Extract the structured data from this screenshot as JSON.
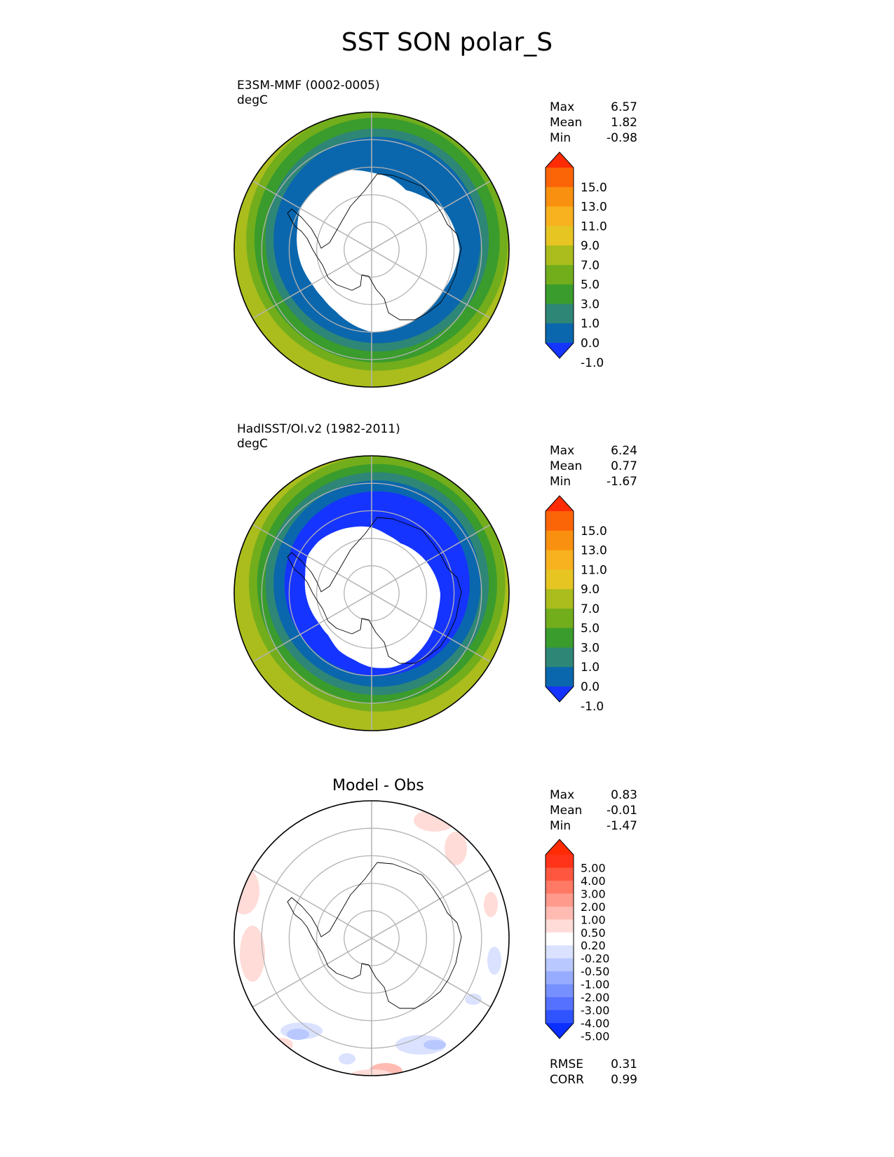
{
  "figure": {
    "title": "SST SON polar_S"
  },
  "chart_data": [
    {
      "type": "heatmap",
      "projection": "south polar stereographic",
      "title": "E3SM-MMF (0002-0005)",
      "units": "degC",
      "stats": [
        {
          "label": "Max",
          "value": "6.57"
        },
        {
          "label": "Mean",
          "value": "1.82"
        },
        {
          "label": "Min",
          "value": "-0.98"
        }
      ],
      "colorbar": {
        "tick_labels": [
          "15.0",
          "13.0",
          "11.0",
          "9.0",
          "7.0",
          "5.0",
          "3.0",
          "1.0",
          "0.0",
          "-1.0"
        ],
        "colors": [
          "#1534ff",
          "#0a67ad",
          "#2e8676",
          "#3a9c2c",
          "#72ad1c",
          "#aabd1c",
          "#e6c523",
          "#f8b11f",
          "#fa9010",
          "#fc6408",
          "#ff2b05"
        ],
        "extend": "both"
      },
      "sea_ice_edge_colatitude_deg": [
        32,
        31,
        30,
        30,
        30,
        30,
        30,
        28,
        26,
        25,
        25,
        26,
        27,
        28,
        30,
        30,
        30,
        30,
        28,
        27,
        25,
        27,
        30,
        31
      ],
      "grid_on": true
    },
    {
      "type": "heatmap",
      "projection": "south polar stereographic",
      "title": "HadISST/OI.v2 (1982-2011)",
      "units": "degC",
      "stats": [
        {
          "label": "Max",
          "value": "6.24"
        },
        {
          "label": "Mean",
          "value": "0.77"
        },
        {
          "label": "Min",
          "value": "-1.67"
        }
      ],
      "colorbar": {
        "tick_labels": [
          "15.0",
          "13.0",
          "11.0",
          "9.0",
          "7.0",
          "5.0",
          "3.0",
          "1.0",
          "0.0",
          "-1.0"
        ],
        "colors": [
          "#1534ff",
          "#0a67ad",
          "#2e8676",
          "#3a9c2c",
          "#72ad1c",
          "#aabd1c",
          "#e6c523",
          "#f8b11f",
          "#fa9010",
          "#fc6408",
          "#ff2b05"
        ],
        "extend": "both"
      },
      "sea_ice_edge_colatitude_deg": [
        25,
        25,
        26,
        27,
        28,
        28,
        27,
        25,
        24,
        22,
        22,
        23,
        24,
        25,
        27,
        27,
        26,
        25,
        24,
        22,
        21,
        22,
        23,
        24
      ],
      "grid_on": true
    },
    {
      "type": "heatmap",
      "projection": "south polar stereographic",
      "title": "Model - Obs",
      "stats": [
        {
          "label": "Max",
          "value": "0.83"
        },
        {
          "label": "Mean",
          "value": "-0.01"
        },
        {
          "label": "Min",
          "value": "-1.47"
        }
      ],
      "colorbar": {
        "tick_labels": [
          "5.00",
          "4.00",
          "3.00",
          "2.00",
          "1.00",
          "0.50",
          "0.20",
          "-0.20",
          "-0.50",
          "-1.00",
          "-2.00",
          "-3.00",
          "-4.00",
          "-5.00"
        ],
        "colors": [
          "#0b2fff",
          "#2f53ff",
          "#5571ff",
          "#7790ff",
          "#98acff",
          "#b9c8ff",
          "#dae2ff",
          "#ffffff",
          "#ffdcd8",
          "#ffbbb2",
          "#ff9a8c",
          "#ff7965",
          "#ff573f",
          "#ff3319",
          "#ff2b05"
        ],
        "extend": "both"
      },
      "metrics": [
        {
          "label": "RMSE",
          "value": "0.31"
        },
        {
          "label": "CORR",
          "value": "0.99"
        }
      ],
      "grid_on": true
    }
  ]
}
